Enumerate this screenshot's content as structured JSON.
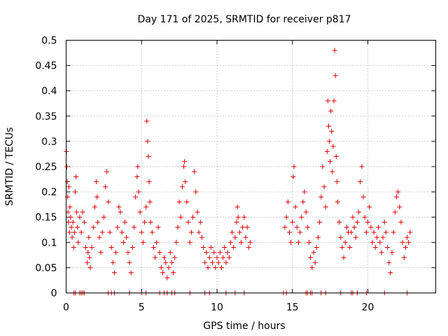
{
  "chart_data": {
    "type": "scatter",
    "title": "Day 171 of 2025, SRMTID for receiver p817",
    "xlabel": "GPS time / hours",
    "ylabel": "SRMTID / TECUs",
    "xlim": [
      0,
      24.5
    ],
    "ylim": [
      0,
      0.5
    ],
    "xticks": [
      0,
      5,
      10,
      15,
      20
    ],
    "xtick_labels": [
      "0",
      "5",
      "10",
      "15",
      "20"
    ],
    "yticks": [
      0,
      0.05,
      0.1,
      0.15,
      0.2,
      0.25,
      0.3,
      0.35,
      0.4,
      0.45,
      0.5
    ],
    "ytick_labels": [
      "0",
      "0.05",
      "0.1",
      "0.15",
      "0.2",
      "0.25",
      "0.3",
      "0.35",
      "0.4",
      "0.45",
      "0.5"
    ],
    "grid": true,
    "marker": "+",
    "color": "#e00000",
    "series": [
      {
        "name": "SRMTID",
        "points": [
          [
            0.02,
            0.28
          ],
          [
            0.05,
            0.25
          ],
          [
            0.08,
            0.22
          ],
          [
            0.1,
            0.19
          ],
          [
            0.12,
            0.16
          ],
          [
            0.15,
            0.14
          ],
          [
            0.18,
            0.21
          ],
          [
            0.22,
            0.12
          ],
          [
            0.25,
            0.17
          ],
          [
            0.3,
            0.15
          ],
          [
            0.35,
            0.13
          ],
          [
            0.4,
            0.11
          ],
          [
            0.45,
            0.14
          ],
          [
            0.5,
            0.09
          ],
          [
            0.55,
            0.12
          ],
          [
            0.6,
            0.2
          ],
          [
            0.65,
            0.23
          ],
          [
            0.7,
            0.16
          ],
          [
            0.75,
            0.13
          ],
          [
            0.8,
            0.1
          ],
          [
            0.9,
            0.15
          ],
          [
            1.0,
            0.12
          ],
          [
            1.1,
            0.16
          ],
          [
            1.2,
            0.14
          ],
          [
            1.3,
            0.09
          ],
          [
            1.4,
            0.06
          ],
          [
            1.45,
            0.08
          ],
          [
            1.5,
            0.11
          ],
          [
            1.55,
            0.07
          ],
          [
            1.6,
            0.05
          ],
          [
            1.7,
            0.09
          ],
          [
            1.8,
            0.13
          ],
          [
            1.9,
            0.17
          ],
          [
            2.0,
            0.22
          ],
          [
            2.05,
            0.19
          ],
          [
            2.1,
            0.14
          ],
          [
            2.2,
            0.11
          ],
          [
            2.3,
            0.08
          ],
          [
            2.4,
            0.12
          ],
          [
            2.5,
            0.15
          ],
          [
            2.6,
            0.21
          ],
          [
            2.7,
            0.24
          ],
          [
            2.8,
            0.18
          ],
          [
            2.9,
            0.12
          ],
          [
            3.0,
            0.09
          ],
          [
            3.1,
            0.06
          ],
          [
            3.2,
            0.04
          ],
          [
            3.3,
            0.08
          ],
          [
            3.4,
            0.13
          ],
          [
            3.5,
            0.17
          ],
          [
            3.6,
            0.16
          ],
          [
            3.7,
            0.12
          ],
          [
            3.8,
            0.1
          ],
          [
            3.9,
            0.14
          ],
          [
            4.0,
            0.11
          ],
          [
            4.1,
            0.08
          ],
          [
            4.2,
            0.06
          ],
          [
            4.3,
            0.04
          ],
          [
            4.4,
            0.09
          ],
          [
            4.5,
            0.13
          ],
          [
            4.6,
            0.19
          ],
          [
            4.7,
            0.23
          ],
          [
            4.75,
            0.25
          ],
          [
            4.8,
            0.2
          ],
          [
            4.9,
            0.16
          ],
          [
            5.0,
            0.12
          ],
          [
            5.1,
            0.1
          ],
          [
            5.2,
            0.14
          ],
          [
            5.3,
            0.17
          ],
          [
            5.35,
            0.34
          ],
          [
            5.4,
            0.3
          ],
          [
            5.45,
            0.27
          ],
          [
            5.5,
            0.22
          ],
          [
            5.55,
            0.18
          ],
          [
            5.6,
            0.14
          ],
          [
            5.7,
            0.12
          ],
          [
            5.8,
            0.09
          ],
          [
            5.9,
            0.07
          ],
          [
            6.0,
            0.1
          ],
          [
            6.1,
            0.13
          ],
          [
            6.2,
            0.08
          ],
          [
            6.3,
            0.05
          ],
          [
            6.4,
            0.04
          ],
          [
            6.5,
            0.07
          ],
          [
            6.6,
            0.06
          ],
          [
            6.7,
            0.03
          ],
          [
            6.8,
            0.05
          ],
          [
            6.9,
            0.08
          ],
          [
            7.0,
            0.06
          ],
          [
            7.1,
            0.04
          ],
          [
            7.2,
            0.07
          ],
          [
            7.3,
            0.1
          ],
          [
            7.4,
            0.13
          ],
          [
            7.5,
            0.18
          ],
          [
            7.6,
            0.15
          ],
          [
            7.7,
            0.21
          ],
          [
            7.8,
            0.25
          ],
          [
            7.85,
            0.26
          ],
          [
            7.9,
            0.22
          ],
          [
            8.0,
            0.18
          ],
          [
            8.1,
            0.14
          ],
          [
            8.2,
            0.1
          ],
          [
            8.3,
            0.12
          ],
          [
            8.4,
            0.15
          ],
          [
            8.5,
            0.24
          ],
          [
            8.6,
            0.2
          ],
          [
            8.7,
            0.16
          ],
          [
            8.8,
            0.12
          ],
          [
            8.9,
            0.14
          ],
          [
            9.0,
            0.11
          ],
          [
            9.1,
            0.09
          ],
          [
            9.2,
            0.06
          ],
          [
            9.3,
            0.08
          ],
          [
            9.4,
            0.05
          ],
          [
            9.5,
            0.07
          ],
          [
            9.6,
            0.09
          ],
          [
            9.7,
            0.06
          ],
          [
            9.8,
            0.08
          ],
          [
            9.9,
            0.05
          ],
          [
            10.0,
            0.07
          ],
          [
            10.1,
            0.06
          ],
          [
            10.2,
            0.08
          ],
          [
            10.3,
            0.05
          ],
          [
            10.4,
            0.07
          ],
          [
            10.5,
            0.09
          ],
          [
            10.6,
            0.06
          ],
          [
            10.7,
            0.08
          ],
          [
            10.8,
            0.07
          ],
          [
            10.9,
            0.1
          ],
          [
            11.0,
            0.12
          ],
          [
            11.1,
            0.09
          ],
          [
            11.2,
            0.11
          ],
          [
            11.3,
            0.14
          ],
          [
            11.35,
            0.17
          ],
          [
            11.4,
            0.15
          ],
          [
            11.5,
            0.12
          ],
          [
            11.6,
            0.1
          ],
          [
            11.7,
            0.13
          ],
          [
            11.8,
            0.15
          ],
          [
            11.9,
            0.11
          ],
          [
            12.0,
            0.13
          ],
          [
            12.1,
            0.09
          ],
          [
            12.2,
            0.1
          ],
          [
            14.5,
            0.13
          ],
          [
            14.6,
            0.15
          ],
          [
            14.7,
            0.18
          ],
          [
            14.8,
            0.12
          ],
          [
            14.9,
            0.1
          ],
          [
            15.0,
            0.14
          ],
          [
            15.05,
            0.23
          ],
          [
            15.1,
            0.25
          ],
          [
            15.2,
            0.17
          ],
          [
            15.3,
            0.13
          ],
          [
            15.4,
            0.1
          ],
          [
            15.5,
            0.12
          ],
          [
            15.6,
            0.15
          ],
          [
            15.7,
            0.18
          ],
          [
            15.8,
            0.2
          ],
          [
            15.9,
            0.16
          ],
          [
            16.0,
            0.13
          ],
          [
            16.1,
            0.1
          ],
          [
            16.2,
            0.07
          ],
          [
            16.3,
            0.05
          ],
          [
            16.4,
            0.08
          ],
          [
            16.5,
            0.06
          ],
          [
            16.6,
            0.09
          ],
          [
            16.7,
            0.11
          ],
          [
            16.8,
            0.14
          ],
          [
            16.9,
            0.19
          ],
          [
            17.0,
            0.25
          ],
          [
            17.1,
            0.21
          ],
          [
            17.2,
            0.17
          ],
          [
            17.3,
            0.28
          ],
          [
            17.35,
            0.38
          ],
          [
            17.4,
            0.33
          ],
          [
            17.45,
            0.3
          ],
          [
            17.5,
            0.26
          ],
          [
            17.55,
            0.36
          ],
          [
            17.6,
            0.32
          ],
          [
            17.65,
            0.24
          ],
          [
            17.7,
            0.29
          ],
          [
            17.75,
            0.38
          ],
          [
            17.8,
            0.48
          ],
          [
            17.85,
            0.43
          ],
          [
            17.9,
            0.27
          ],
          [
            17.95,
            0.22
          ],
          [
            18.0,
            0.18
          ],
          [
            18.1,
            0.14
          ],
          [
            18.2,
            0.11
          ],
          [
            18.3,
            0.09
          ],
          [
            18.4,
            0.07
          ],
          [
            18.5,
            0.1
          ],
          [
            18.6,
            0.13
          ],
          [
            18.7,
            0.12
          ],
          [
            18.8,
            0.09
          ],
          [
            18.9,
            0.12
          ],
          [
            19.0,
            0.15
          ],
          [
            19.1,
            0.13
          ],
          [
            19.2,
            0.11
          ],
          [
            19.3,
            0.14
          ],
          [
            19.4,
            0.16
          ],
          [
            19.5,
            0.22
          ],
          [
            19.6,
            0.25
          ],
          [
            19.7,
            0.19
          ],
          [
            19.8,
            0.15
          ],
          [
            19.9,
            0.12
          ],
          [
            20.0,
            0.14
          ],
          [
            20.1,
            0.17
          ],
          [
            20.2,
            0.13
          ],
          [
            20.3,
            0.1
          ],
          [
            20.4,
            0.12
          ],
          [
            20.5,
            0.09
          ],
          [
            20.6,
            0.11
          ],
          [
            20.7,
            0.13
          ],
          [
            20.8,
            0.1
          ],
          [
            20.9,
            0.08
          ],
          [
            21.0,
            0.11
          ],
          [
            21.1,
            0.14
          ],
          [
            21.2,
            0.12
          ],
          [
            21.3,
            0.09
          ],
          [
            21.4,
            0.06
          ],
          [
            21.5,
            0.04
          ],
          [
            21.6,
            0.08
          ],
          [
            21.7,
            0.12
          ],
          [
            21.8,
            0.16
          ],
          [
            21.9,
            0.19
          ],
          [
            22.0,
            0.2
          ],
          [
            22.1,
            0.17
          ],
          [
            22.2,
            0.14
          ],
          [
            22.3,
            0.1
          ],
          [
            22.4,
            0.07
          ],
          [
            22.5,
            0.09
          ],
          [
            22.6,
            0.11
          ],
          [
            22.7,
            0.1
          ],
          [
            22.8,
            0.12
          ]
        ],
        "zero_points": [
          0.5,
          0.6,
          0.9,
          1.0,
          1.1,
          1.2,
          2.8,
          3.0,
          3.2,
          4.2,
          5.0,
          5.3,
          6.2,
          6.5,
          6.7,
          7.0,
          7.2,
          8.2,
          9.2,
          9.5,
          10.6,
          11.2,
          11.8,
          14.4,
          14.6,
          15.9,
          16.0,
          16.2,
          16.3,
          16.9,
          17.2,
          18.2,
          18.9,
          19.0,
          19.3,
          19.9,
          21.1,
          22.6
        ]
      }
    ]
  }
}
